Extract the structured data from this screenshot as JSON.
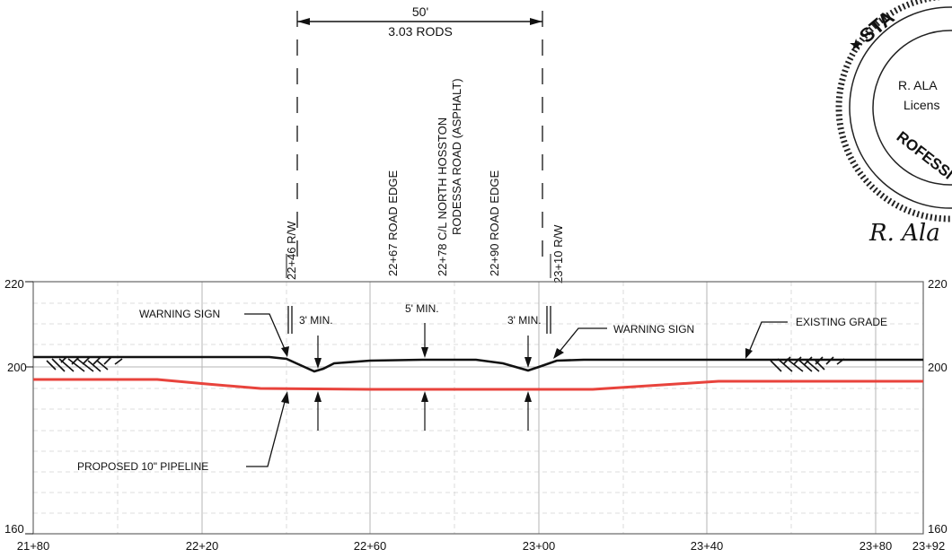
{
  "dimension": {
    "feet": "50'",
    "rods": "3.03 RODS"
  },
  "stations": [
    {
      "text": "22+46 R/W"
    },
    {
      "text": "22+67 ROAD EDGE"
    },
    {
      "text": "22+78 C/L NORTH HOSSTON",
      "text2": "RODESSA ROAD (ASPHALT)"
    },
    {
      "text": "22+90 ROAD EDGE"
    },
    {
      "text": "23+10 R/W"
    }
  ],
  "elevations": {
    "left": [
      "220",
      "200",
      "160"
    ],
    "right": [
      "220",
      "200",
      "160"
    ]
  },
  "x_ticks": [
    "21+80",
    "22+20",
    "22+60",
    "23+00",
    "23+40",
    "23+80",
    "23+92"
  ],
  "callouts": {
    "warning_left": "WARNING SIGN",
    "warning_right": "WARNING SIGN",
    "min_left": "3' MIN.",
    "min_center": "5' MIN.",
    "min_right": "3' MIN.",
    "existing_grade": "EXISTING GRADE",
    "pipeline": "PROPOSED 10\" PIPELINE"
  },
  "seal": {
    "top": "STA",
    "name": "R. ALA",
    "license": "Licens",
    "bottom": "ROFESSI",
    "signature": "R. Ala"
  },
  "colors": {
    "pipeline": "#e8433c",
    "grade": "#111111",
    "grid": "#bdbdbd"
  }
}
